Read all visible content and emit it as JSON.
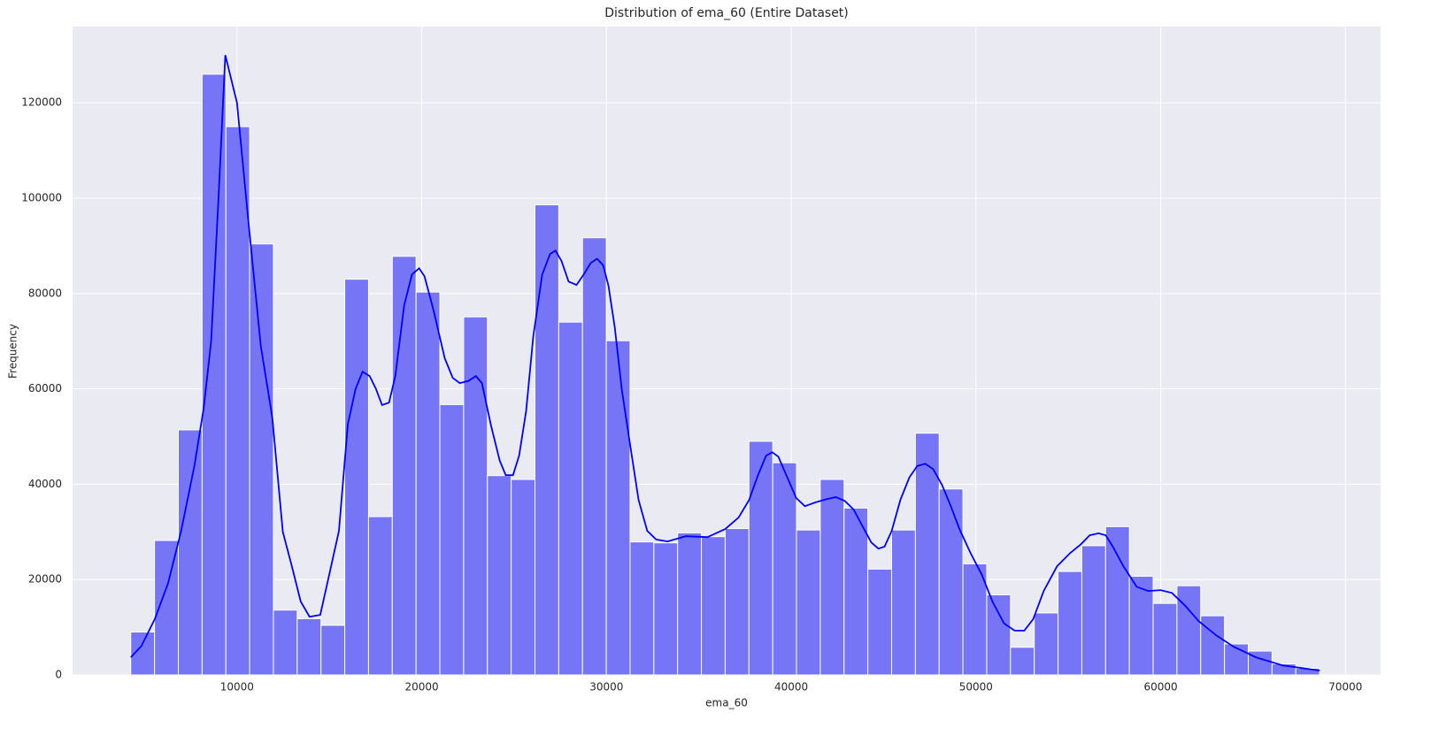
{
  "chart_data": {
    "type": "histogram",
    "title": "Distribution of ema_60 (Entire Dataset)",
    "x_label": "ema_60",
    "y_label": "Frequency",
    "bins": [
      4250,
      5537,
      6824,
      8111,
      9398,
      10685,
      11972,
      13259,
      14546,
      15833,
      17120,
      18407,
      19694,
      20981,
      22268,
      23555,
      24842,
      26129,
      27416,
      28703,
      29990,
      31277,
      32564,
      33851,
      35138,
      36425,
      37712,
      38999,
      40286,
      41573,
      42860,
      44147,
      45434,
      46721,
      48008,
      49295,
      50582,
      51869,
      53156,
      54443,
      55730,
      57017,
      58304,
      59591,
      60878,
      62165,
      63452,
      64739,
      66026,
      67313,
      68600
    ],
    "values": [
      9000,
      28200,
      51400,
      126000,
      115000,
      90400,
      13600,
      11800,
      10400,
      83000,
      33200,
      87800,
      80300,
      56700,
      75100,
      41800,
      41000,
      98600,
      74000,
      91700,
      70100,
      27900,
      27700,
      29800,
      29000,
      30700,
      49000,
      44500,
      30400,
      41000,
      35000,
      22200,
      30400,
      50700,
      39000,
      23300,
      16800,
      5800,
      13000,
      21700,
      27100,
      31100,
      20700,
      15000,
      18700,
      12400,
      6500,
      5000,
      2300,
      1400
    ],
    "color": "#7575f6",
    "kde": {
      "color": "#0000ff",
      "x": [
        4250,
        4830,
        5550,
        6260,
        6980,
        7700,
        8200,
        8600,
        9000,
        9370,
        10000,
        10570,
        11290,
        11910,
        12480,
        12970,
        13450,
        13930,
        14510,
        14990,
        15520,
        16000,
        16420,
        16800,
        17180,
        17520,
        17850,
        18230,
        18570,
        19050,
        19470,
        19860,
        20150,
        20630,
        21250,
        21680,
        22060,
        22540,
        22930,
        23260,
        23740,
        24220,
        24550,
        24940,
        25270,
        25650,
        26040,
        26520,
        26950,
        27240,
        27570,
        27950,
        28380,
        28770,
        29150,
        29490,
        29820,
        30110,
        30450,
        30830,
        31260,
        31740,
        32210,
        32690,
        33310,
        34280,
        35470,
        36430,
        37150,
        37720,
        38200,
        38640,
        38970,
        39300,
        39790,
        40270,
        40740,
        41320,
        41940,
        42420,
        42900,
        43380,
        43860,
        44330,
        44720,
        45050,
        45440,
        45910,
        46390,
        46820,
        47250,
        47680,
        48160,
        48640,
        49110,
        49700,
        50320,
        50890,
        51520,
        52090,
        52620,
        53100,
        53670,
        54390,
        55110,
        55680,
        56160,
        56640,
        57020,
        57410,
        57980,
        58700,
        59320,
        59990,
        60610,
        61330,
        62050,
        63010,
        63960,
        65160,
        66600,
        68610
      ],
      "values": [
        3700,
        6100,
        11700,
        19100,
        30200,
        44000,
        56000,
        70000,
        100000,
        130000,
        120000,
        97000,
        69000,
        54000,
        30000,
        22800,
        15400,
        12200,
        12600,
        21000,
        30200,
        52500,
        60000,
        63600,
        62700,
        60000,
        56600,
        57100,
        62700,
        77500,
        84000,
        85300,
        83600,
        76600,
        66400,
        62300,
        61200,
        61700,
        62700,
        61200,
        52500,
        45000,
        41900,
        41900,
        46000,
        55300,
        71000,
        84000,
        88300,
        89000,
        86800,
        82500,
        81800,
        84000,
        86400,
        87300,
        85900,
        81600,
        72900,
        59900,
        48800,
        36700,
        30200,
        28400,
        28000,
        29100,
        28900,
        30600,
        33000,
        36700,
        41900,
        46000,
        46700,
        45800,
        41400,
        37100,
        35400,
        36200,
        36900,
        37300,
        36500,
        34700,
        31200,
        27800,
        26500,
        26900,
        30200,
        36700,
        41400,
        43800,
        44300,
        43200,
        39900,
        35400,
        30600,
        25600,
        21000,
        15400,
        10800,
        9300,
        9300,
        11700,
        17600,
        22800,
        25600,
        27400,
        29300,
        29700,
        29300,
        26900,
        22800,
        18500,
        17600,
        17800,
        17200,
        14500,
        11300,
        8300,
        5900,
        3700,
        2000,
        900
      ]
    },
    "xlim": [
      1100,
      71900
    ],
    "ylim": [
      0,
      136000
    ],
    "xticks": [
      10000,
      20000,
      30000,
      40000,
      50000,
      60000,
      70000
    ],
    "yticks": [
      0,
      20000,
      40000,
      60000,
      80000,
      100000,
      120000
    ],
    "grid": true
  }
}
